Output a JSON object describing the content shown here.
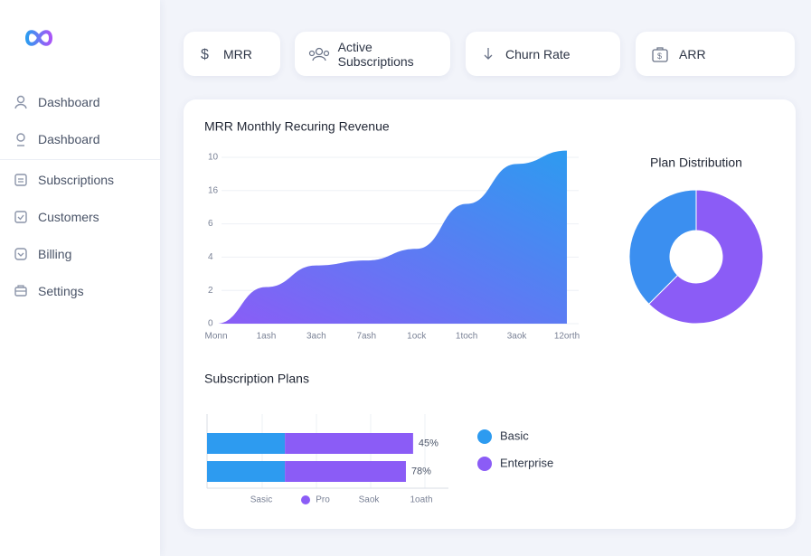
{
  "sidebar": {
    "nav": [
      "Dashboard",
      "Dashboard",
      "Subscriptions",
      "Customers",
      "Billing",
      "Settings"
    ]
  },
  "top_cards": [
    "MRR",
    "Active Subscriptions",
    "Churn Rate",
    "ARR"
  ],
  "revenue_chart": {
    "type": "area",
    "title": "MRR Monthly Recuring Revenue",
    "y_axis_labels": [
      "10",
      "16",
      "6",
      "4",
      "2",
      "0"
    ],
    "categories": [
      "Monn",
      "1ash",
      "3ach",
      "7ash",
      "1ock",
      "1toch",
      "3aok",
      "12orth"
    ],
    "values": [
      0,
      2.2,
      3.5,
      3.8,
      4.5,
      7.2,
      9.6,
      10.4
    ],
    "ylim": [
      0,
      10
    ],
    "colors": [
      "#8b5cf6",
      "#2d9bf0"
    ]
  },
  "plan_distribution": {
    "type": "pie",
    "title": "Plan Distribution",
    "values": [
      62.5,
      37.5
    ],
    "colors": [
      "#8b5cf6",
      "#3b8ff0"
    ]
  },
  "subscription_plans": {
    "type": "stacked-bar",
    "title": "Subscription Plans",
    "xlim": [
      0,
      100
    ],
    "series": [
      {
        "name": "Basic",
        "color": "#2d9bf0",
        "values": [
          32.5,
          32.5
        ]
      },
      {
        "name": "Enterprise",
        "color": "#8b5cf6",
        "values": [
          53.5,
          50.5
        ]
      }
    ],
    "bar_labels": [
      "45%",
      "78%"
    ],
    "x_axis_labels": [
      "Sasic",
      "Pro",
      "Saok",
      "1oath"
    ]
  }
}
